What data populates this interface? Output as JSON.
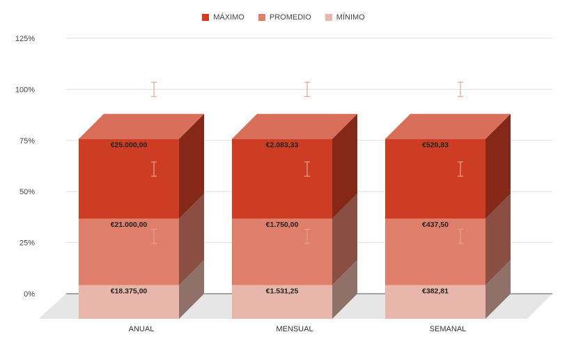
{
  "chart_data": {
    "type": "bar",
    "stacked": true,
    "style": "3d",
    "categories": [
      "ANUAL",
      "MENSUAL",
      "SEMANAL"
    ],
    "y_ticks": [
      "0%",
      "25%",
      "50%",
      "75%",
      "100%",
      "125%"
    ],
    "ylim": [
      0,
      125
    ],
    "grid": true,
    "legend_position": "top",
    "series": [
      {
        "name": "MÍNIMO",
        "values": [
          16.5,
          16.5,
          16.5
        ],
        "labels": [
          "€18.375,00",
          "€1.531,25",
          "€382,81"
        ],
        "color": "#e8b6ab",
        "error_center": 28
      },
      {
        "name": "PROMEDIO",
        "values": [
          32.5,
          32.5,
          32.5
        ],
        "labels": [
          "€21.000,00",
          "€1.750,00",
          "€437,50"
        ],
        "color": "#df7e6b",
        "error_center": 61
      },
      {
        "name": "MÁXIMO",
        "values": [
          39,
          39,
          39
        ],
        "labels": [
          "€25.000,00",
          "€2.083,33",
          "€520,83"
        ],
        "color": "#cc3d24",
        "error_center": 100
      }
    ],
    "legend_order": [
      "MÁXIMO",
      "PROMEDIO",
      "MÍNIMO"
    ],
    "error_bar_color": "#e8a290"
  }
}
